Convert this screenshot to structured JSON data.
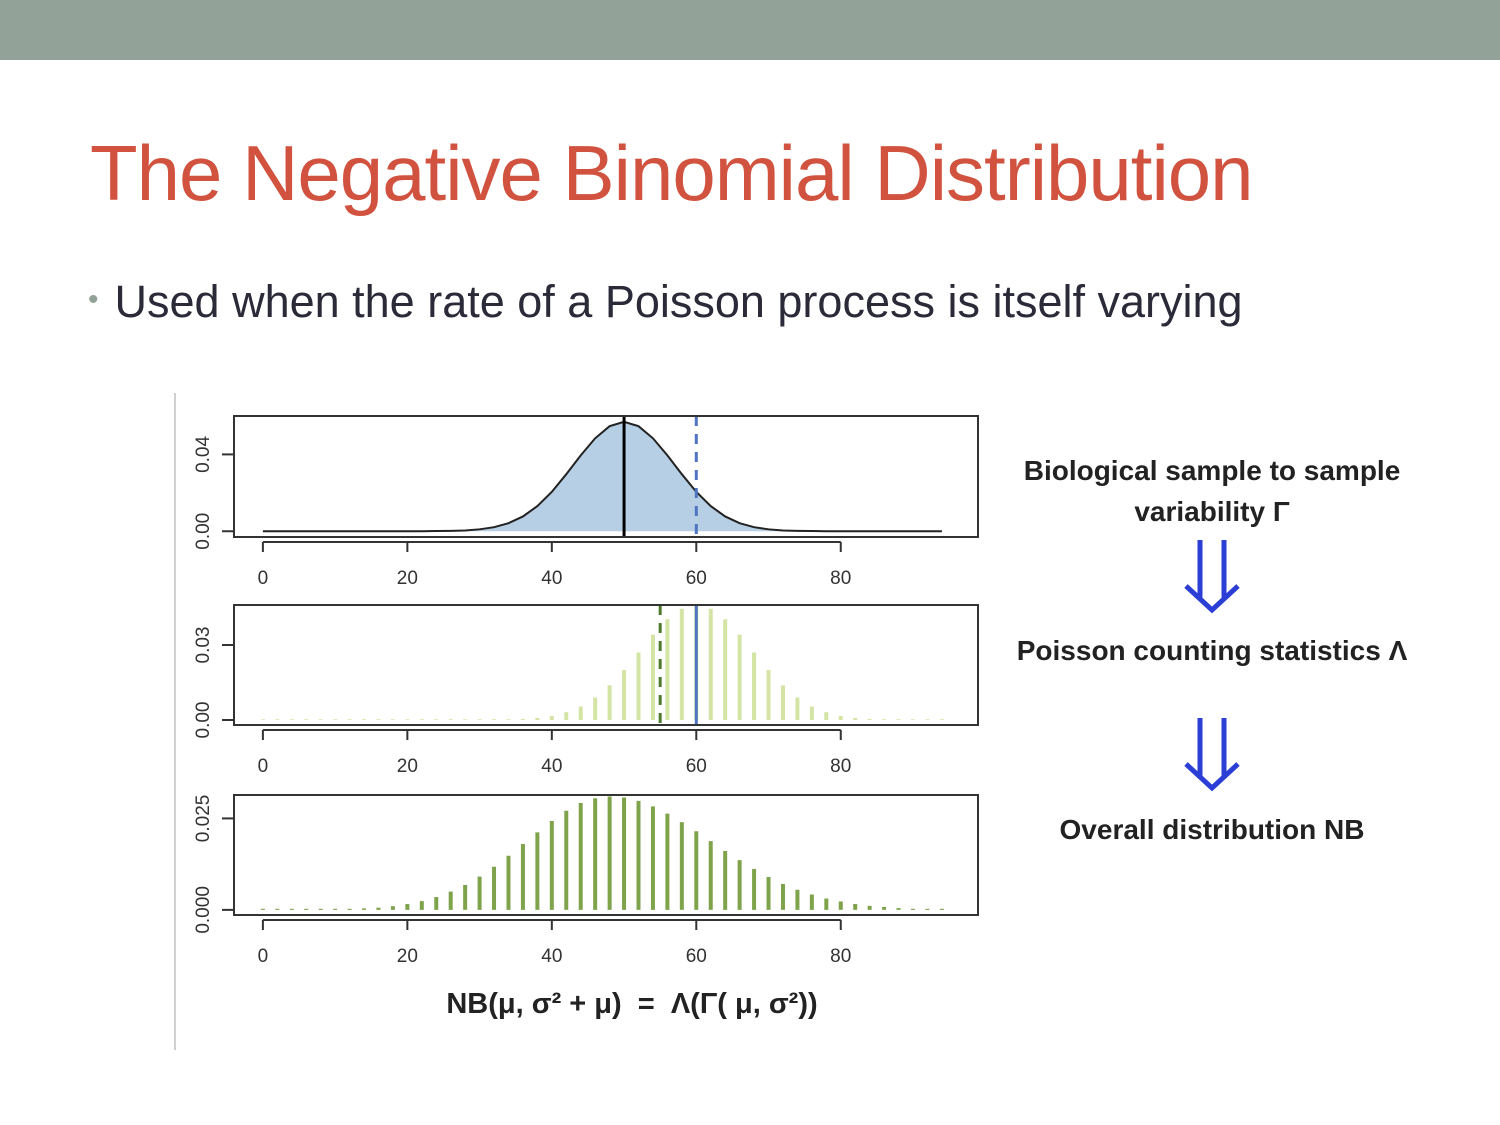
{
  "slide": {
    "title": "The Negative Binomial Distribution",
    "bullets": [
      "Used when the rate of a Poisson process is itself varying"
    ]
  },
  "figure": {
    "stages": [
      "Biological sample to sample variability Γ",
      "Poisson counting statistics Λ",
      "Overall distribution NB"
    ],
    "formula": "NB(μ, σ² + μ)  =  Λ(Γ( μ, σ²))"
  },
  "chart_data": [
    {
      "type": "area",
      "color": "#b7cfe4",
      "line_color": "#222222",
      "x": [
        0,
        2,
        4,
        6,
        8,
        10,
        12,
        14,
        16,
        18,
        20,
        22,
        24,
        26,
        28,
        30,
        32,
        34,
        36,
        38,
        40,
        42,
        44,
        46,
        48,
        50,
        52,
        54,
        56,
        58,
        60,
        62,
        64,
        66,
        68,
        70,
        72,
        74,
        76,
        78,
        80,
        82,
        84,
        86,
        88,
        90,
        92,
        94
      ],
      "values": [
        0,
        0,
        0,
        0,
        0,
        0,
        0,
        0,
        0,
        0,
        0,
        0,
        0.0001,
        0.0002,
        0.0004,
        0.001,
        0.0021,
        0.0042,
        0.0077,
        0.0131,
        0.0205,
        0.0297,
        0.0395,
        0.0484,
        0.0547,
        0.057,
        0.0547,
        0.0484,
        0.0395,
        0.0297,
        0.0205,
        0.0131,
        0.0077,
        0.0042,
        0.0021,
        0.001,
        0.0004,
        0.0002,
        0.0001,
        0,
        0,
        0,
        0,
        0,
        0,
        0,
        0,
        0
      ],
      "xlim": [
        -4,
        99
      ],
      "xticks": [
        0,
        20,
        40,
        60,
        80
      ],
      "ylim": [
        -0.003,
        0.06
      ],
      "yticks": [
        {
          "value": 0,
          "label": "0.00"
        },
        0.04
      ],
      "vlines": [
        {
          "x": 50,
          "color": "#000000",
          "dashed": false
        },
        {
          "x": 60,
          "color": "#4f74c2",
          "dashed": true
        }
      ]
    },
    {
      "type": "bar",
      "color": "#d3e4a4",
      "x": [
        0,
        2,
        4,
        6,
        8,
        10,
        12,
        14,
        16,
        18,
        20,
        22,
        24,
        26,
        28,
        30,
        32,
        34,
        36,
        38,
        40,
        42,
        44,
        46,
        48,
        50,
        52,
        54,
        56,
        58,
        60,
        62,
        64,
        66,
        68,
        70,
        72,
        74,
        76,
        78,
        80,
        82,
        84,
        86,
        88,
        90,
        92,
        94
      ],
      "values": [
        0.0003,
        0.0003,
        0.0003,
        0.0003,
        0.0003,
        0.0003,
        0.0003,
        0.0003,
        0.0003,
        0.0003,
        0.0003,
        0.0003,
        0.0003,
        0.0003,
        0.0003,
        0.0003,
        0.0003,
        0.0003,
        0.0004,
        0.0008,
        0.0016,
        0.0031,
        0.0054,
        0.009,
        0.0139,
        0.02,
        0.027,
        0.0341,
        0.0403,
        0.0445,
        0.046,
        0.0445,
        0.0403,
        0.0341,
        0.027,
        0.02,
        0.0139,
        0.009,
        0.0054,
        0.0031,
        0.0016,
        0.0008,
        0.0004,
        0.0003,
        0.0003,
        0.0003,
        0.0003,
        0.0003
      ],
      "xlim": [
        -4,
        99
      ],
      "xticks": [
        0,
        20,
        40,
        60,
        80
      ],
      "ylim": [
        -0.002,
        0.046
      ],
      "yticks": [
        {
          "value": 0,
          "label": "0.00"
        },
        0.03
      ],
      "vlines": [
        {
          "x": 55,
          "color": "#4c7a2a",
          "dashed": true
        },
        {
          "x": 60,
          "color": "#4f74c2",
          "dashed": false
        }
      ]
    },
    {
      "type": "bar",
      "color": "#7ea34b",
      "x": [
        0,
        2,
        4,
        6,
        8,
        10,
        12,
        14,
        16,
        18,
        20,
        22,
        24,
        26,
        28,
        30,
        32,
        34,
        36,
        38,
        40,
        42,
        44,
        46,
        48,
        50,
        52,
        54,
        56,
        58,
        60,
        62,
        64,
        66,
        68,
        70,
        72,
        74,
        76,
        78,
        80,
        82,
        84,
        86,
        88,
        90,
        92,
        94
      ],
      "values": [
        0.0003,
        0.0003,
        0.0003,
        0.0003,
        0.0003,
        0.0003,
        0.0003,
        0.0004,
        0.0006,
        0.001,
        0.0016,
        0.0024,
        0.0035,
        0.005,
        0.0068,
        0.0091,
        0.0118,
        0.0148,
        0.018,
        0.0212,
        0.0243,
        0.0271,
        0.0292,
        0.0305,
        0.031,
        0.0307,
        0.0298,
        0.0283,
        0.0263,
        0.024,
        0.0215,
        0.0188,
        0.0161,
        0.0136,
        0.0112,
        0.009,
        0.0071,
        0.0055,
        0.0042,
        0.0031,
        0.0023,
        0.0016,
        0.0011,
        0.0008,
        0.0005,
        0.0003,
        0.0003,
        0.0003
      ],
      "xlim": [
        -4,
        99
      ],
      "xticks": [
        0,
        20,
        40,
        60,
        80
      ],
      "ylim": [
        -0.0014,
        0.0314
      ],
      "yticks": [
        {
          "value": 0,
          "label": "0.000"
        },
        0.025
      ]
    }
  ]
}
